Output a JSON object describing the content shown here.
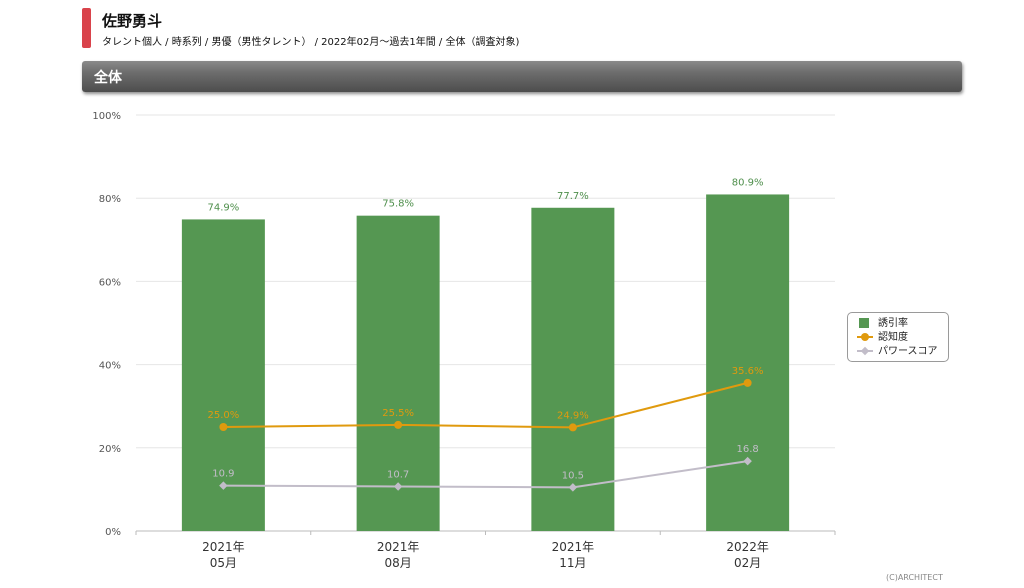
{
  "header": {
    "title": "佐野勇斗",
    "subtitle": "タレント個人 / 時系列 / 男優（男性タレント） / 2022年02月〜過去1年間 / 全体（調査対象)"
  },
  "section": {
    "label": "全体"
  },
  "chart_data": {
    "type": "bar",
    "categories": [
      [
        "2021年",
        "05月"
      ],
      [
        "2021年",
        "08月"
      ],
      [
        "2021年",
        "11月"
      ],
      [
        "2022年",
        "02月"
      ]
    ],
    "ylim": [
      0,
      100
    ],
    "yticks": [
      "0%",
      "20%",
      "40%",
      "60%",
      "80%",
      "100%"
    ],
    "grid": true,
    "legend_position": "right",
    "series": [
      {
        "name": "誘引率",
        "kind": "bar",
        "color": "#559752",
        "values": [
          74.9,
          75.8,
          77.7,
          80.9
        ],
        "labels": [
          "74.9%",
          "75.8%",
          "77.7%",
          "80.9%"
        ]
      },
      {
        "name": "認知度",
        "kind": "line",
        "marker": "circle",
        "color": "#e09a0e",
        "values": [
          25.0,
          25.5,
          24.9,
          35.6
        ],
        "labels": [
          "25.0%",
          "25.5%",
          "24.9%",
          "35.6%"
        ]
      },
      {
        "name": "パワースコア",
        "kind": "line",
        "marker": "diamond",
        "color": "#c2bdc9",
        "values": [
          10.9,
          10.7,
          10.5,
          16.8
        ],
        "labels": [
          "10.9",
          "10.7",
          "10.5",
          "16.8"
        ]
      }
    ]
  },
  "footer": {
    "copyright": "(C)ARCHITECT"
  }
}
